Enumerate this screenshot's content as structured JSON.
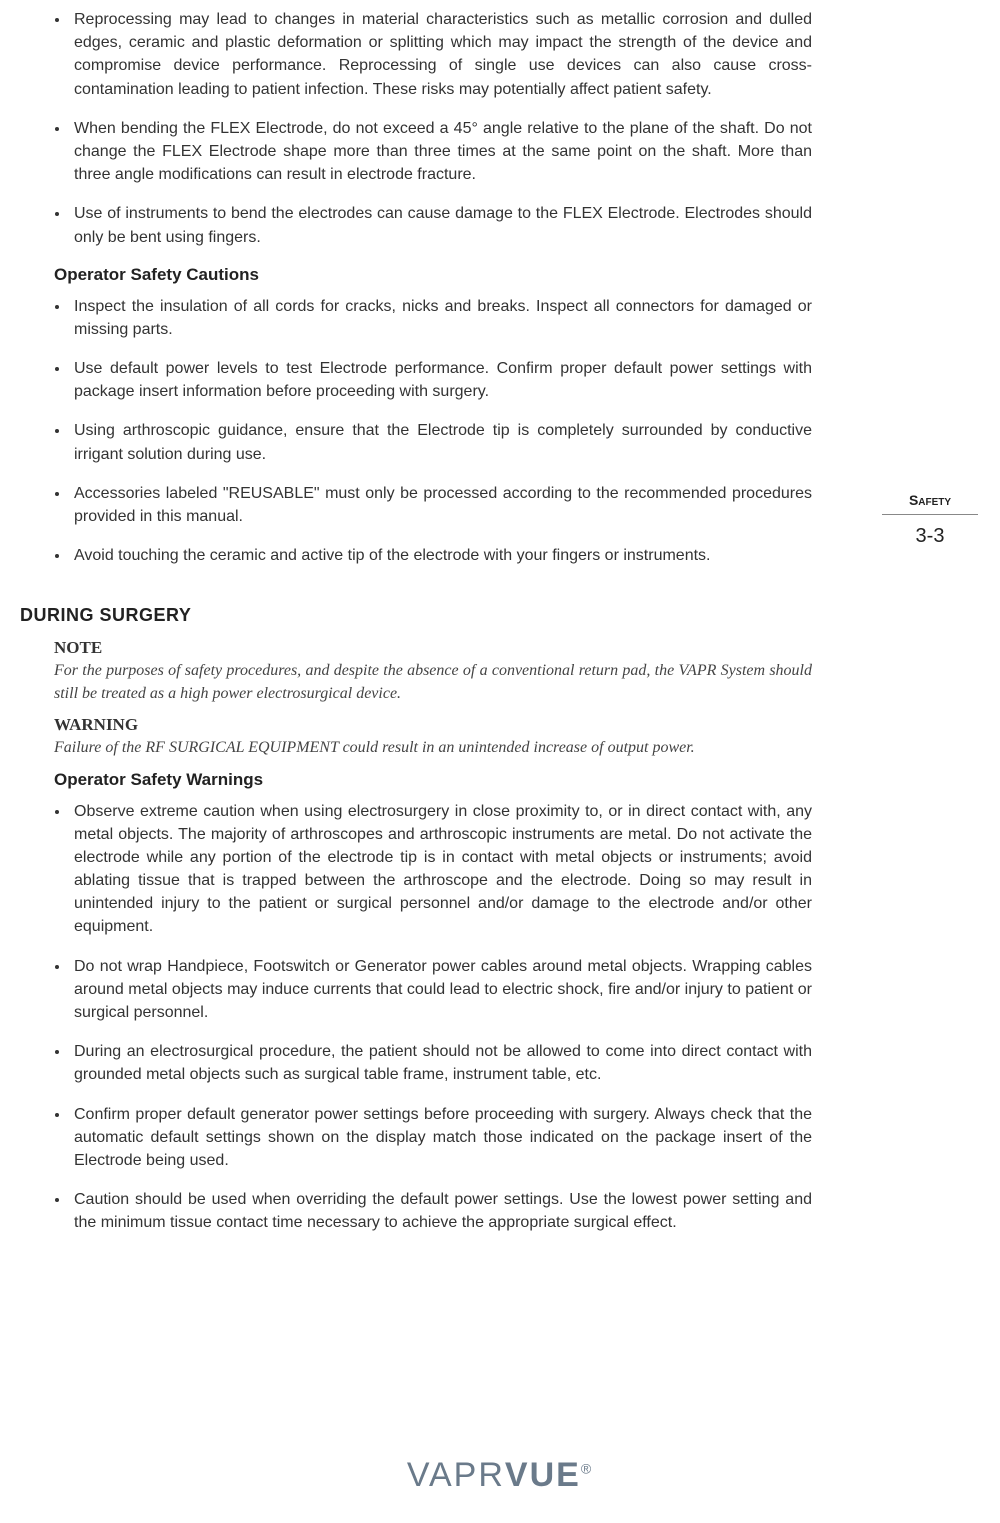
{
  "colors": {
    "text": "#333333",
    "heading": "#222222",
    "logo": "#6a7a8a",
    "background": "#ffffff",
    "rule": "#888888"
  },
  "typography": {
    "body_family": "Arial, Helvetica, sans-serif",
    "serif_family": "Georgia, 'Times New Roman', serif",
    "body_size_pt": 12,
    "heading_size_pt": 13,
    "section_size_pt": 14,
    "logo_size_pt": 26
  },
  "top_bullets": [
    "Reprocessing may lead to changes in material characteristics such as metallic corrosion and dulled edges, ceramic and plastic deformation or splitting which may impact the strength of the device and compromise device performance. Reprocessing of single use devices can also cause cross-contamination leading to patient infection. These risks may potentially affect patient safety.",
    "When bending the FLEX Electrode, do not exceed a 45° angle relative to the plane of the shaft. Do not change the FLEX Electrode shape more than three times at the same point on the shaft. More than three angle modifications can result in electrode fracture.",
    "Use of instruments to bend the electrodes can cause damage to the FLEX Electrode. Electrodes should only be bent using fingers."
  ],
  "cautions_heading": "Operator Safety Cautions",
  "cautions": [
    "Inspect the insulation of all cords for cracks, nicks and breaks. Inspect all connectors for damaged or missing parts.",
    "Use default power levels to test Electrode performance. Confirm proper default power settings with package insert information before proceeding with surgery.",
    "Using arthroscopic guidance, ensure that the Electrode tip is completely surrounded by conductive irrigant solution during use.",
    "Accessories labeled \"REUSABLE\" must only be processed according to the recommended procedures provided in this manual.",
    "Avoid touching the ceramic and active tip of the electrode with your fingers or instruments."
  ],
  "section_heading": "DURING SURGERY",
  "note": {
    "title": "NOTE",
    "body": "For the purposes of safety procedures, and despite the absence of a conventional return pad, the VAPR System should still be treated as a high power electrosurgical device."
  },
  "warning": {
    "title": "WARNING",
    "body": "Failure of the RF SURGICAL EQUIPMENT could result in an unintended increase of output power."
  },
  "warnings_heading": "Operator Safety Warnings",
  "warnings": [
    "Observe extreme caution when using electrosurgery in close proximity to, or in direct contact with, any metal objects. The majority of arthroscopes and arthroscopic instruments are metal. Do not activate the electrode while any portion of the electrode tip is in contact with metal objects or instruments; avoid ablating tissue that is trapped between the arthroscope and the electrode. Doing so may result in unintended injury to the patient or surgical personnel and/or damage to the electrode and/or other equipment.",
    "Do not wrap Handpiece, Footswitch or Generator power cables around metal objects. Wrapping cables around metal objects may induce currents that could lead to electric shock, fire and/or injury to patient or surgical personnel.",
    "During an electrosurgical procedure, the patient should not be allowed to come into direct contact with grounded metal objects such as surgical table frame, instrument table, etc.",
    "Confirm proper default generator power settings before proceeding with surgery. Always check that the automatic default settings shown on the display match those indicated on the package insert of the Electrode being used.",
    "Caution should be used when overriding the default power settings. Use the lowest power setting and the minimum tissue contact time necessary to achieve the appropriate surgical effect."
  ],
  "side_tab": {
    "label": "Safety",
    "page": "3-3"
  },
  "logo": {
    "part1": "VAPR",
    "part2": "VUE",
    "reg": "®"
  }
}
